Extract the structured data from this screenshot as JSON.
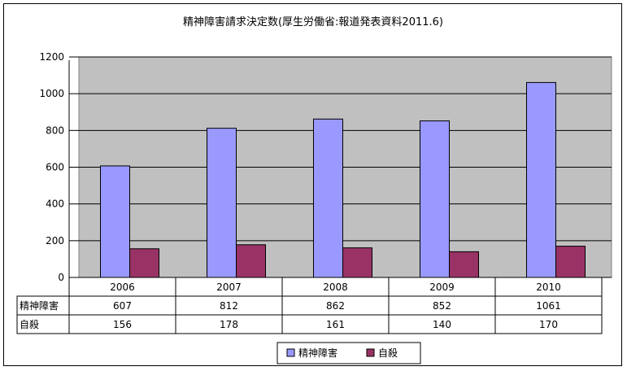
{
  "chart_data": {
    "type": "bar",
    "title": "精神障害請求決定数(厚生労働省:報道発表資料2011.6)",
    "categories": [
      "2006",
      "2007",
      "2008",
      "2009",
      "2010"
    ],
    "series": [
      {
        "name": "精神障害",
        "color": "#9999ff",
        "values": [
          607,
          812,
          862,
          852,
          1061
        ]
      },
      {
        "name": "自殺",
        "color": "#993366",
        "values": [
          156,
          178,
          161,
          140,
          170
        ]
      }
    ],
    "ylim": [
      0,
      1200
    ],
    "yticks": [
      "0",
      "200",
      "400",
      "600",
      "800",
      "1000",
      "1200"
    ],
    "grid": true,
    "legend": "bottom",
    "data_table": true
  }
}
